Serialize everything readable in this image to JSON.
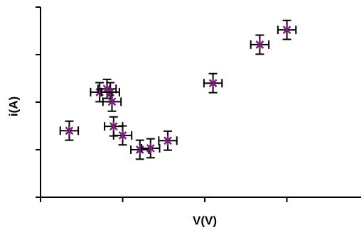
{
  "chart_data": {
    "type": "scatter",
    "x_label": "V(V)",
    "y_label": "i(A)",
    "x": [
      0.35,
      0.72,
      0.81,
      0.85,
      0.87,
      0.89,
      1.0,
      1.21,
      1.34,
      1.55,
      2.1,
      2.67,
      3.0
    ],
    "values": [
      1.4,
      2.21,
      2.28,
      2.21,
      2.01,
      1.49,
      1.3,
      1.0,
      1.03,
      1.19,
      2.4,
      3.21,
      3.52
    ],
    "xerr": [
      0.11,
      0.11,
      0.11,
      0.11,
      0.11,
      0.11,
      0.11,
      0.11,
      0.11,
      0.11,
      0.11,
      0.11,
      0.11
    ],
    "yerr": [
      0.2,
      0.2,
      0.2,
      0.2,
      0.2,
      0.2,
      0.2,
      0.2,
      0.2,
      0.2,
      0.2,
      0.2,
      0.2
    ],
    "color": "#7a1f7a",
    "error_color": "#000000",
    "xlim": [
      0,
      3.9
    ],
    "xticks": [
      0,
      1,
      2,
      3
    ],
    "ylim": [
      0,
      4
    ],
    "yticks": [
      0,
      1,
      2,
      3,
      4
    ]
  }
}
